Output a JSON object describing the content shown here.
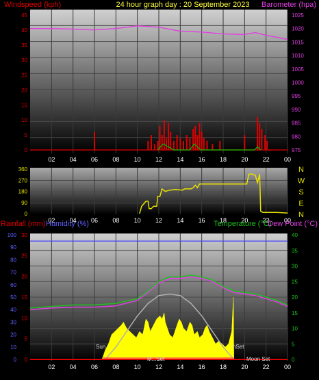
{
  "header": {
    "title": "24 hour graph day : 20 September 2023",
    "left_label": "Windspeed (kph)",
    "right_label": "Barometer (hpa)"
  },
  "colors": {
    "wind": "#e00000",
    "gust": "#00c000",
    "barometer": "#e040e0",
    "direction": "#e8e000",
    "rain": "#e00000",
    "humidity": "#4444ff",
    "temperature": "#20c020",
    "dewpoint": "#e040e0",
    "solar": "#ffff00",
    "sunline": "#b0b0b0",
    "background": "#000000"
  },
  "chart_data": [
    {
      "id": "wind_baro",
      "type": "bar",
      "title": "24 hour graph day : 20 September 2023",
      "x_ticks": [
        "02",
        "04",
        "06",
        "08",
        "10",
        "12",
        "14",
        "16",
        "18",
        "20",
        "22",
        "00"
      ],
      "left_axis": {
        "label": "Windspeed (kph)",
        "ylim": [
          0,
          45
        ],
        "ticks": [
          "0",
          "5",
          "10",
          "15",
          "20",
          "25",
          "30",
          "35",
          "40",
          "45"
        ]
      },
      "right_axis": {
        "label": "Barometer (hpa)",
        "ylim": [
          975,
          1025
        ],
        "ticks": [
          "975",
          "980",
          "985",
          "990",
          "995",
          "1000",
          "1005",
          "1010",
          "1015",
          "1020",
          "1025"
        ]
      },
      "series": [
        {
          "name": "Windspeed (kph)",
          "axis": "left",
          "points": [
            [
              6.0,
              6
            ],
            [
              11.0,
              3
            ],
            [
              11.3,
              5
            ],
            [
              11.6,
              2
            ],
            [
              11.9,
              3
            ],
            [
              12.1,
              8
            ],
            [
              12.3,
              5
            ],
            [
              12.5,
              10
            ],
            [
              12.7,
              4
            ],
            [
              12.9,
              9
            ],
            [
              13.1,
              6
            ],
            [
              13.4,
              3
            ],
            [
              13.7,
              5
            ],
            [
              14.0,
              4
            ],
            [
              14.3,
              3
            ],
            [
              14.6,
              5
            ],
            [
              14.9,
              4
            ],
            [
              15.2,
              7
            ],
            [
              15.4,
              8
            ],
            [
              15.6,
              5
            ],
            [
              15.8,
              9
            ],
            [
              16.0,
              6
            ],
            [
              16.2,
              4
            ],
            [
              16.5,
              3
            ],
            [
              17.0,
              2
            ],
            [
              17.7,
              3
            ],
            [
              20.0,
              5
            ],
            [
              21.2,
              11
            ],
            [
              21.4,
              9
            ],
            [
              21.6,
              7
            ],
            [
              21.9,
              5
            ],
            [
              22.1,
              3
            ]
          ]
        },
        {
          "name": "Gust",
          "axis": "left",
          "points": [
            [
              11.9,
              0
            ],
            [
              12.4,
              2
            ],
            [
              12.9,
              1
            ],
            [
              13.4,
              0
            ],
            [
              14.9,
              0
            ],
            [
              15.3,
              2
            ],
            [
              15.6,
              1
            ],
            [
              15.9,
              0
            ],
            [
              20.9,
              0
            ],
            [
              21.2,
              1
            ],
            [
              21.5,
              0
            ]
          ]
        },
        {
          "name": "Barometer (hpa)",
          "axis": "right",
          "points": [
            [
              0,
              1020
            ],
            [
              2,
              1020
            ],
            [
              4,
              1019.8
            ],
            [
              6,
              1019.5
            ],
            [
              8,
              1020
            ],
            [
              10,
              1021
            ],
            [
              12,
              1020.5
            ],
            [
              14,
              1019
            ],
            [
              16,
              1018.7
            ],
            [
              18,
              1018
            ],
            [
              20,
              1017.8
            ],
            [
              21,
              1018.5
            ],
            [
              22,
              1017.5
            ],
            [
              24,
              1016
            ]
          ]
        }
      ]
    },
    {
      "id": "direction",
      "type": "line",
      "x_ticks": [
        "02",
        "04",
        "06",
        "08",
        "10",
        "12",
        "14",
        "16",
        "18",
        "20",
        "22",
        "00"
      ],
      "left_axis": {
        "ylim": [
          0,
          360
        ],
        "ticks": [
          "0",
          "90",
          "180",
          "270",
          "360"
        ]
      },
      "compass": [
        "N",
        "W",
        "S",
        "E",
        "N"
      ],
      "series": [
        {
          "name": "Wind direction",
          "points": [
            [
              10.2,
              0
            ],
            [
              10.4,
              60
            ],
            [
              10.6,
              80
            ],
            [
              10.8,
              100
            ],
            [
              11.0,
              100
            ],
            [
              11.1,
              40
            ],
            [
              11.3,
              40
            ],
            [
              11.5,
              60
            ],
            [
              11.8,
              60
            ],
            [
              11.9,
              140
            ],
            [
              12.1,
              140
            ],
            [
              12.3,
              200
            ],
            [
              12.6,
              180
            ],
            [
              13.0,
              190
            ],
            [
              13.5,
              195
            ],
            [
              14.2,
              190
            ],
            [
              14.4,
              200
            ],
            [
              15.0,
              200
            ],
            [
              15.2,
              210
            ],
            [
              15.4,
              230
            ],
            [
              15.6,
              210
            ],
            [
              15.8,
              240
            ],
            [
              16.2,
              240
            ],
            [
              17.0,
              240
            ],
            [
              18.0,
              240
            ],
            [
              19.0,
              240
            ],
            [
              20.2,
              240
            ],
            [
              20.4,
              320
            ],
            [
              20.7,
              320
            ],
            [
              21.0,
              310
            ],
            [
              21.2,
              250
            ],
            [
              21.4,
              320
            ],
            [
              21.5,
              20
            ],
            [
              21.7,
              10
            ],
            [
              22.0,
              10
            ],
            [
              23.0,
              10
            ],
            [
              24.0,
              5
            ]
          ]
        }
      ]
    },
    {
      "id": "temp_hum_rain",
      "type": "line",
      "x_ticks": [
        "02",
        "04",
        "06",
        "08",
        "10",
        "12",
        "14",
        "16",
        "18",
        "20",
        "22",
        "00"
      ],
      "labels": {
        "rainfall": "Rainfall (mm)",
        "humidity": "Humidity (%)",
        "temperature": "Temperature (°C)",
        "dewpoint": "Dew Point (°C)"
      },
      "humidity_axis": {
        "ylim": [
          0,
          100
        ],
        "ticks": [
          "0",
          "10",
          "20",
          "30",
          "40",
          "50",
          "60",
          "70",
          "80",
          "90",
          "100"
        ]
      },
      "rain_axis": {
        "ylim": [
          0,
          30
        ],
        "ticks": [
          "0",
          "5",
          "10",
          "15",
          "20",
          "25",
          "30"
        ]
      },
      "temperature_axis": {
        "ylim": [
          0,
          40
        ],
        "ticks": [
          "0",
          "5",
          "10",
          "15",
          "20",
          "25",
          "30",
          "35",
          "40"
        ]
      },
      "annotations": {
        "sunrise": "Sun",
        "sunset": "nSet",
        "moonset": "Moon Set",
        "noon": "M...Set"
      },
      "series": [
        {
          "name": "Humidity (%)",
          "axis": "humidity",
          "points": [
            [
              0,
              95
            ],
            [
              24,
              95
            ]
          ]
        },
        {
          "name": "Temperature (°C)",
          "axis": "temperature",
          "points": [
            [
              0,
              16.5
            ],
            [
              2,
              17
            ],
            [
              4,
              17.5
            ],
            [
              6,
              17.5
            ],
            [
              8,
              18
            ],
            [
              10,
              19.5
            ],
            [
              11,
              22
            ],
            [
              12,
              25
            ],
            [
              13,
              26.5
            ],
            [
              14,
              26.5
            ],
            [
              15,
              27
            ],
            [
              16,
              26.5
            ],
            [
              17,
              25.5
            ],
            [
              18,
              23.5
            ],
            [
              19,
              22
            ],
            [
              20,
              21.5
            ],
            [
              21,
              21
            ],
            [
              22,
              20
            ],
            [
              23,
              19
            ],
            [
              24,
              17.5
            ]
          ]
        },
        {
          "name": "Dew Point (°C)",
          "axis": "temperature",
          "points": [
            [
              0,
              16
            ],
            [
              2,
              16.5
            ],
            [
              4,
              16.8
            ],
            [
              6,
              16.8
            ],
            [
              8,
              17.2
            ],
            [
              10,
              19
            ],
            [
              11,
              21.5
            ],
            [
              12,
              24.5
            ],
            [
              13,
              26
            ],
            [
              14,
              26
            ],
            [
              15,
              26.5
            ],
            [
              16,
              26
            ],
            [
              17,
              25
            ],
            [
              18,
              23
            ],
            [
              19,
              21.5
            ],
            [
              20,
              21
            ],
            [
              21,
              20.5
            ],
            [
              22,
              19.5
            ],
            [
              23,
              18.5
            ],
            [
              24,
              17
            ]
          ]
        },
        {
          "name": "Solar max",
          "axis": "temperature",
          "points": [
            [
              7.0,
              0
            ],
            [
              8,
              4
            ],
            [
              9,
              9
            ],
            [
              10,
              14
            ],
            [
              11,
              18
            ],
            [
              12,
              20.5
            ],
            [
              13,
              21
            ],
            [
              14,
              20.5
            ],
            [
              15,
              18
            ],
            [
              16,
              14
            ],
            [
              17,
              9
            ],
            [
              18,
              4
            ],
            [
              19.0,
              0
            ]
          ]
        },
        {
          "name": "Solar",
          "axis": "temperature",
          "points": [
            [
              6.7,
              0
            ],
            [
              7.0,
              3
            ],
            [
              7.3,
              5
            ],
            [
              7.6,
              8
            ],
            [
              7.9,
              9
            ],
            [
              8.2,
              10
            ],
            [
              8.5,
              11
            ],
            [
              8.7,
              12
            ],
            [
              9.0,
              10
            ],
            [
              9.3,
              9
            ],
            [
              9.6,
              8
            ],
            [
              9.9,
              7
            ],
            [
              10.2,
              9
            ],
            [
              10.5,
              8
            ],
            [
              10.8,
              13
            ],
            [
              11.0,
              12
            ],
            [
              11.2,
              9
            ],
            [
              11.5,
              11
            ],
            [
              11.8,
              13
            ],
            [
              12.1,
              14
            ],
            [
              12.3,
              13
            ],
            [
              12.5,
              15
            ],
            [
              12.6,
              12
            ],
            [
              12.8,
              10
            ],
            [
              13.0,
              8
            ],
            [
              13.3,
              7
            ],
            [
              13.5,
              9
            ],
            [
              13.7,
              11
            ],
            [
              13.9,
              13
            ],
            [
              14.1,
              12
            ],
            [
              14.3,
              10
            ],
            [
              14.6,
              9
            ],
            [
              14.9,
              12
            ],
            [
              15.1,
              11
            ],
            [
              15.3,
              8
            ],
            [
              15.6,
              9
            ],
            [
              15.8,
              7
            ],
            [
              16.1,
              8
            ],
            [
              16.3,
              10
            ],
            [
              16.5,
              11
            ],
            [
              16.7,
              9
            ],
            [
              17.0,
              7
            ],
            [
              17.3,
              5
            ],
            [
              17.6,
              6
            ],
            [
              17.9,
              5
            ],
            [
              18.2,
              4
            ],
            [
              18.5,
              5
            ],
            [
              18.8,
              9
            ],
            [
              18.95,
              20
            ],
            [
              19.0,
              0
            ]
          ]
        }
      ]
    }
  ]
}
